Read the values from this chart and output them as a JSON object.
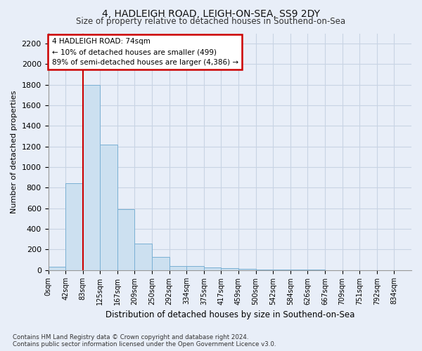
{
  "title1": "4, HADLEIGH ROAD, LEIGH-ON-SEA, SS9 2DY",
  "title2": "Size of property relative to detached houses in Southend-on-Sea",
  "xlabel": "Distribution of detached houses by size in Southend-on-Sea",
  "ylabel": "Number of detached properties",
  "footnote1": "Contains HM Land Registry data © Crown copyright and database right 2024.",
  "footnote2": "Contains public sector information licensed under the Open Government Licence v3.0.",
  "annotation_title": "4 HADLEIGH ROAD: 74sqm",
  "annotation_line1": "← 10% of detached houses are smaller (499)",
  "annotation_line2": "89% of semi-detached houses are larger (4,386) →",
  "bar_labels": [
    "0sqm",
    "42sqm",
    "83sqm",
    "125sqm",
    "167sqm",
    "209sqm",
    "250sqm",
    "292sqm",
    "334sqm",
    "375sqm",
    "417sqm",
    "459sqm",
    "500sqm",
    "542sqm",
    "584sqm",
    "626sqm",
    "667sqm",
    "709sqm",
    "751sqm",
    "792sqm",
    "834sqm"
  ],
  "bar_values": [
    30,
    840,
    1800,
    1220,
    590,
    255,
    125,
    40,
    40,
    25,
    15,
    10,
    4,
    2,
    1,
    1,
    0,
    0,
    0,
    0,
    0
  ],
  "bar_color": "#cce0f0",
  "bar_edge_color": "#7ab0d4",
  "vline_color": "#cc0000",
  "vline_x_index": 2,
  "annotation_box_color": "#ffffff",
  "annotation_box_edge": "#cc0000",
  "ylim": [
    0,
    2300
  ],
  "yticks": [
    0,
    200,
    400,
    600,
    800,
    1000,
    1200,
    1400,
    1600,
    1800,
    2000,
    2200
  ],
  "grid_color": "#c8d4e4",
  "background_color": "#e8eef8",
  "fig_width": 6.0,
  "fig_height": 5.0,
  "dpi": 100
}
